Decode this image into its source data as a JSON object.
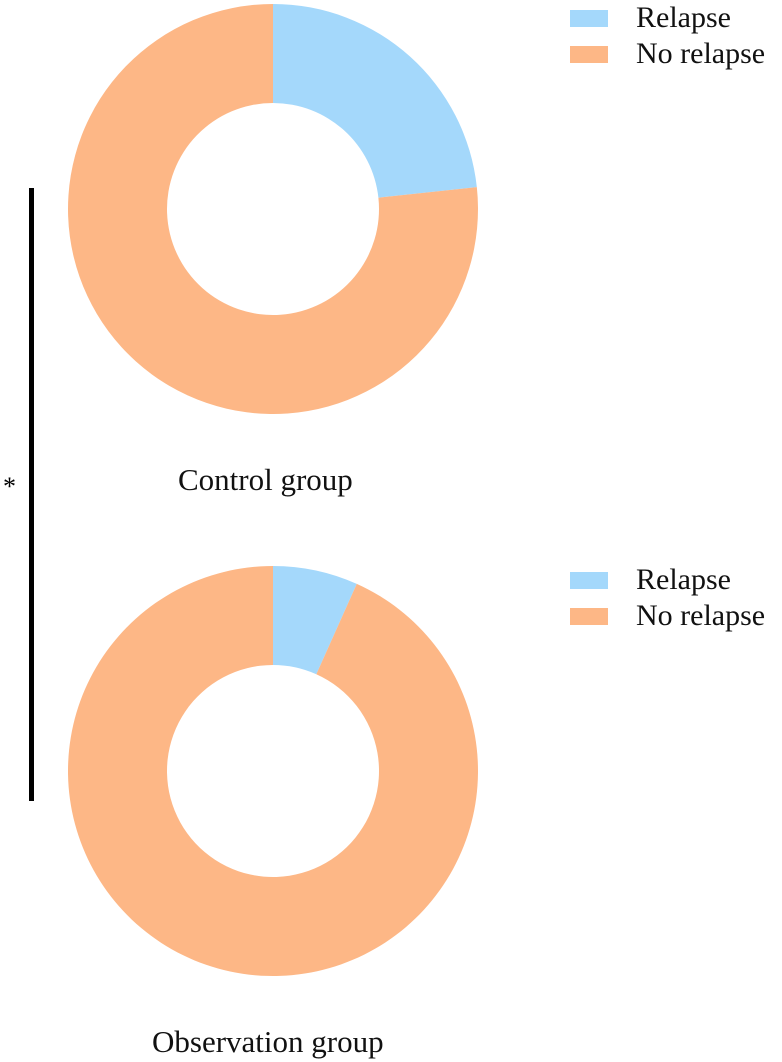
{
  "chart_data": [
    {
      "type": "pie",
      "variant": "donut",
      "title": "Control group",
      "categories": [
        "Relapse",
        "No relapse"
      ],
      "values": [
        23.3,
        76.7
      ],
      "colors": [
        "#a4d8fb",
        "#fdb786"
      ],
      "legend": {
        "entries": [
          "Relapse",
          "No relapse"
        ],
        "placement": "top-right"
      }
    },
    {
      "type": "pie",
      "variant": "donut",
      "title": "Observation group",
      "categories": [
        "Relapse",
        "No relapse"
      ],
      "values": [
        6.7,
        93.3
      ],
      "colors": [
        "#a4d8fb",
        "#fdb786"
      ],
      "legend": {
        "entries": [
          "Relapse",
          "No relapse"
        ],
        "placement": "top-right"
      }
    }
  ],
  "significance": {
    "marker": "*"
  }
}
